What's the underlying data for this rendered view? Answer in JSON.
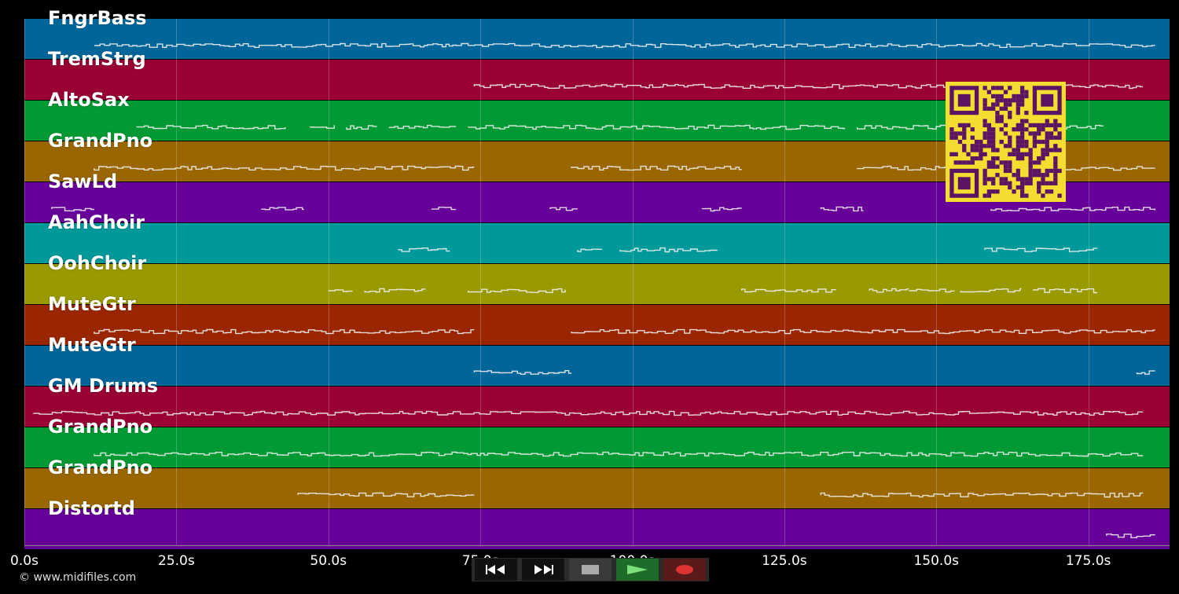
{
  "tracks": [
    {
      "name": "FngrBass",
      "color": "#006699"
    },
    {
      "name": "TremStrg",
      "color": "#990033"
    },
    {
      "name": "AltoSax",
      "color": "#009933"
    },
    {
      "name": "GrandPno",
      "color": "#996600"
    },
    {
      "name": "SawLd",
      "color": "#660099"
    },
    {
      "name": "AahChoir",
      "color": "#009999"
    },
    {
      "name": "OohChoir",
      "color": "#999900"
    },
    {
      "name": "MuteGtr",
      "color": "#992600"
    },
    {
      "name": "MuteGtr",
      "color": "#006699"
    },
    {
      "name": "GM Drums",
      "color": "#990033"
    },
    {
      "name": "GrandPno",
      "color": "#009933"
    },
    {
      "name": "GrandPno",
      "color": "#996600"
    },
    {
      "name": "Distortd",
      "color": "#660099"
    }
  ],
  "timeline": {
    "max_seconds": 188.5,
    "ticks": [
      "0.0s",
      "25.0s",
      "50.0s",
      "75.0s",
      "100.0s",
      "125.0s",
      "150.0s",
      "175.0s"
    ],
    "tick_values": [
      0,
      25,
      50,
      75,
      100,
      125,
      150,
      175
    ]
  },
  "note_regions": [
    [
      [
        11.5,
        186
      ]
    ],
    [
      [
        74,
        184
      ]
    ],
    [
      [
        18.5,
        43
      ],
      [
        47,
        51
      ],
      [
        53,
        58
      ],
      [
        60,
        71
      ],
      [
        73,
        135
      ],
      [
        137,
        177.5
      ]
    ],
    [
      [
        11.5,
        74
      ],
      [
        90,
        118
      ],
      [
        137,
        186
      ]
    ],
    [
      [
        4.5,
        11.5
      ],
      [
        39,
        46
      ],
      [
        67,
        71
      ],
      [
        86.5,
        91
      ],
      [
        111.5,
        118
      ],
      [
        131,
        138
      ],
      [
        159,
        186
      ]
    ],
    [
      [
        61.5,
        70
      ],
      [
        91,
        95
      ],
      [
        98,
        114
      ],
      [
        158,
        176.5
      ]
    ],
    [
      [
        50,
        54
      ],
      [
        56,
        66
      ],
      [
        73,
        89
      ],
      [
        118,
        133.5
      ],
      [
        139,
        145.5
      ],
      [
        145.5,
        153
      ],
      [
        154,
        164
      ],
      [
        166,
        176.5
      ]
    ],
    [
      [
        11.5,
        74
      ],
      [
        90,
        186
      ]
    ],
    [
      [
        74,
        90
      ],
      [
        183,
        186
      ]
    ],
    [
      [
        1.5,
        184
      ]
    ],
    [
      [
        11.5,
        184
      ]
    ],
    [
      [
        45,
        74
      ],
      [
        131,
        184
      ]
    ],
    [
      [
        178,
        186
      ]
    ]
  ],
  "copyright": "© www.midifiles.com",
  "controls": [
    {
      "name": "rewind-button",
      "icon": "rewind-icon"
    },
    {
      "name": "fast-forward-button",
      "icon": "fast-forward-icon"
    },
    {
      "name": "stop-button",
      "icon": "stop-icon"
    },
    {
      "name": "play-button",
      "icon": "play-icon"
    },
    {
      "name": "record-button",
      "icon": "record-icon"
    }
  ],
  "qr": {
    "fg": "#5a1463",
    "bg": "#f2dd30"
  }
}
